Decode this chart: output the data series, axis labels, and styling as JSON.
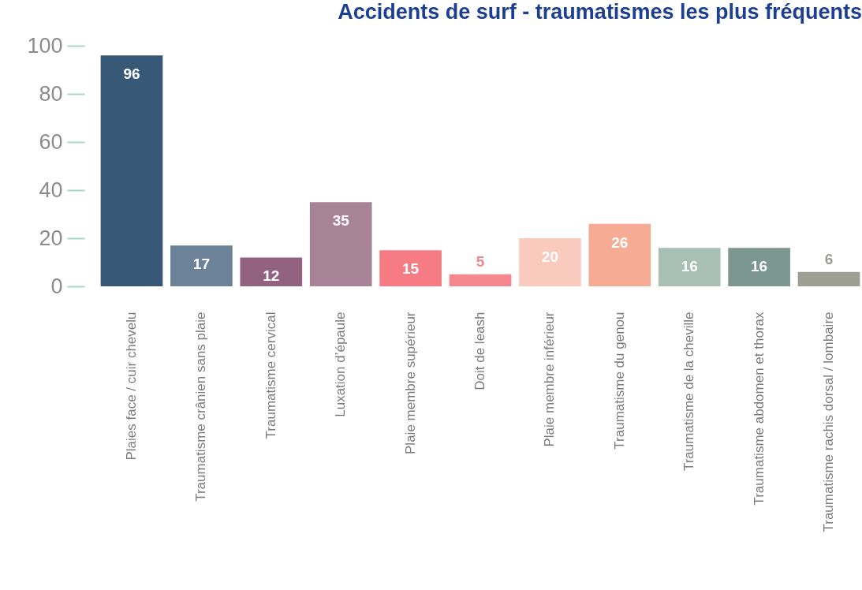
{
  "chart_data": {
    "type": "bar",
    "title": "Accidents de surf - traumatismes les plus fréquents",
    "categories": [
      "Plaies face / cuir chevelu",
      "Traumatisme crânien sans plaie",
      "Traumatisme cervical",
      "Luxation d’épaule",
      "Plaie membre supérieur",
      "Doit de leash",
      "Plaie membre inférieur",
      "Traumatisme du genou",
      "Traumatisme de la cheville",
      "Traumatisme abdomen et thorax",
      "Traumatisme rachis dorsal / lombaire"
    ],
    "values": [
      96,
      17,
      12,
      35,
      15,
      5,
      20,
      26,
      16,
      16,
      6
    ],
    "colors": [
      "#385878",
      "#6b8299",
      "#936280",
      "#a88296",
      "#f67b83",
      "#f5888f",
      "#f9cbbf",
      "#f6ab94",
      "#a8bfb6",
      "#7c9690",
      "#9c9f91"
    ],
    "ylim": [
      0,
      100
    ],
    "yticks": [
      0,
      20,
      40,
      60,
      80,
      100
    ],
    "data_labels": true
  }
}
